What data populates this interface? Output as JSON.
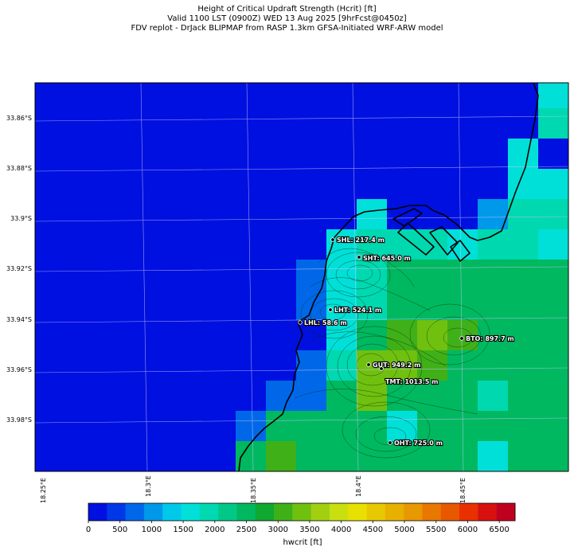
{
  "header": {
    "line1": "Height of Critical Updraft Strength (Hcrit) [ft]",
    "line2": "Valid 1100 LST (0900Z) WED 13 Aug 2025 [9hrFcst@0450z]",
    "line3": "FDV replot - DrJack BLIPMAP from RASP 1.3km GFSA-Initiated WRF-ARW model"
  },
  "axes": {
    "lat_labels": [
      "33.86°S",
      "33.88°S",
      "33.9°S",
      "33.92°S",
      "33.94°S",
      "33.96°S",
      "33.98°S"
    ],
    "lon_labels": [
      "18.25°E",
      "18.3°E",
      "18.35°E",
      "18.4°E",
      "18.45°E"
    ]
  },
  "sites": [
    {
      "name": "SHL",
      "label": "SHL: 217.4 m"
    },
    {
      "name": "SHT",
      "label": "SHT: 645.0 m"
    },
    {
      "name": "LHT",
      "label": "LHT: 524.1 m"
    },
    {
      "name": "LHL",
      "label": "LHL: 58.6 m"
    },
    {
      "name": "BTO",
      "label": "BTO: 897.7 m"
    },
    {
      "name": "GUT",
      "label": "GUT: 949.2 m"
    },
    {
      "name": "TMT",
      "label": "TMT: 1013.5 m"
    },
    {
      "name": "OHT",
      "label": "OHT: 725.0 m"
    }
  ],
  "colorbar": {
    "label": "hwcrit [ft]",
    "ticks": [
      "0",
      "500",
      "1000",
      "1500",
      "2000",
      "2500",
      "3000",
      "3500",
      "4000",
      "4500",
      "5000",
      "5500",
      "6000",
      "6500"
    ],
    "colors": [
      "#0010e0",
      "#0038e8",
      "#0068e8",
      "#0098e8",
      "#00c8e8",
      "#00e0d8",
      "#00d8b0",
      "#00c888",
      "#00b860",
      "#10a830",
      "#40b018",
      "#70c010",
      "#a0d010",
      "#c8e010",
      "#e8e000",
      "#e8c800",
      "#e8b000",
      "#e89800",
      "#e87800",
      "#e85800",
      "#e83000",
      "#d81010",
      "#c00020"
    ]
  },
  "chart_data": {
    "type": "heatmap",
    "title": "Height of Critical Updraft Strength (Hcrit) [ft]",
    "units": "ft",
    "lon_ticks": [
      18.25,
      18.3,
      18.35,
      18.4,
      18.45
    ],
    "lat_ticks": [
      -33.86,
      -33.88,
      -33.9,
      -33.92,
      -33.94,
      -33.96,
      -33.98
    ],
    "value_range": [
      0,
      6750
    ],
    "grid_cols": 18,
    "grid_rows": 13,
    "grid_ft": [
      [
        0,
        0,
        0,
        0,
        0,
        0,
        0,
        0,
        0,
        0,
        0,
        0,
        0,
        0,
        0,
        0,
        0,
        1500
      ],
      [
        0,
        0,
        0,
        0,
        0,
        0,
        0,
        0,
        0,
        0,
        0,
        0,
        0,
        0,
        0,
        0,
        0,
        2000
      ],
      [
        0,
        0,
        0,
        0,
        0,
        0,
        0,
        0,
        0,
        0,
        0,
        0,
        0,
        0,
        0,
        0,
        1500,
        0
      ],
      [
        0,
        0,
        0,
        0,
        0,
        0,
        0,
        0,
        0,
        0,
        0,
        0,
        0,
        0,
        0,
        0,
        1500,
        1500
      ],
      [
        0,
        0,
        0,
        0,
        0,
        0,
        0,
        0,
        0,
        0,
        0,
        1500,
        0,
        0,
        0,
        1000,
        2000,
        2000
      ],
      [
        0,
        0,
        0,
        0,
        0,
        0,
        0,
        0,
        0,
        0,
        1500,
        2000,
        2000,
        2000,
        1500,
        2000,
        2000,
        1500
      ],
      [
        0,
        0,
        0,
        0,
        0,
        0,
        0,
        0,
        0,
        750,
        1500,
        2000,
        2500,
        2500,
        2500,
        2500,
        2500,
        2500
      ],
      [
        0,
        0,
        0,
        0,
        0,
        0,
        0,
        0,
        0,
        750,
        1500,
        2000,
        2500,
        2500,
        2500,
        2500,
        2500,
        2500
      ],
      [
        0,
        0,
        0,
        0,
        0,
        0,
        0,
        0,
        0,
        0,
        1500,
        2500,
        3000,
        3500,
        3000,
        2500,
        2500,
        2500
      ],
      [
        0,
        0,
        0,
        0,
        0,
        0,
        0,
        0,
        0,
        750,
        2000,
        3500,
        3500,
        3000,
        2500,
        2500,
        2500,
        2500
      ],
      [
        0,
        0,
        0,
        0,
        0,
        0,
        0,
        0,
        750,
        750,
        2500,
        3500,
        2500,
        2500,
        2500,
        2000,
        2500,
        2500
      ],
      [
        0,
        0,
        0,
        0,
        0,
        0,
        0,
        750,
        2500,
        2500,
        2500,
        2500,
        1500,
        2500,
        2500,
        2500,
        2500,
        2500
      ],
      [
        0,
        0,
        0,
        0,
        0,
        0,
        0,
        2500,
        3000,
        2500,
        2500,
        2500,
        2500,
        2500,
        2500,
        1500,
        2500,
        2500
      ]
    ]
  }
}
